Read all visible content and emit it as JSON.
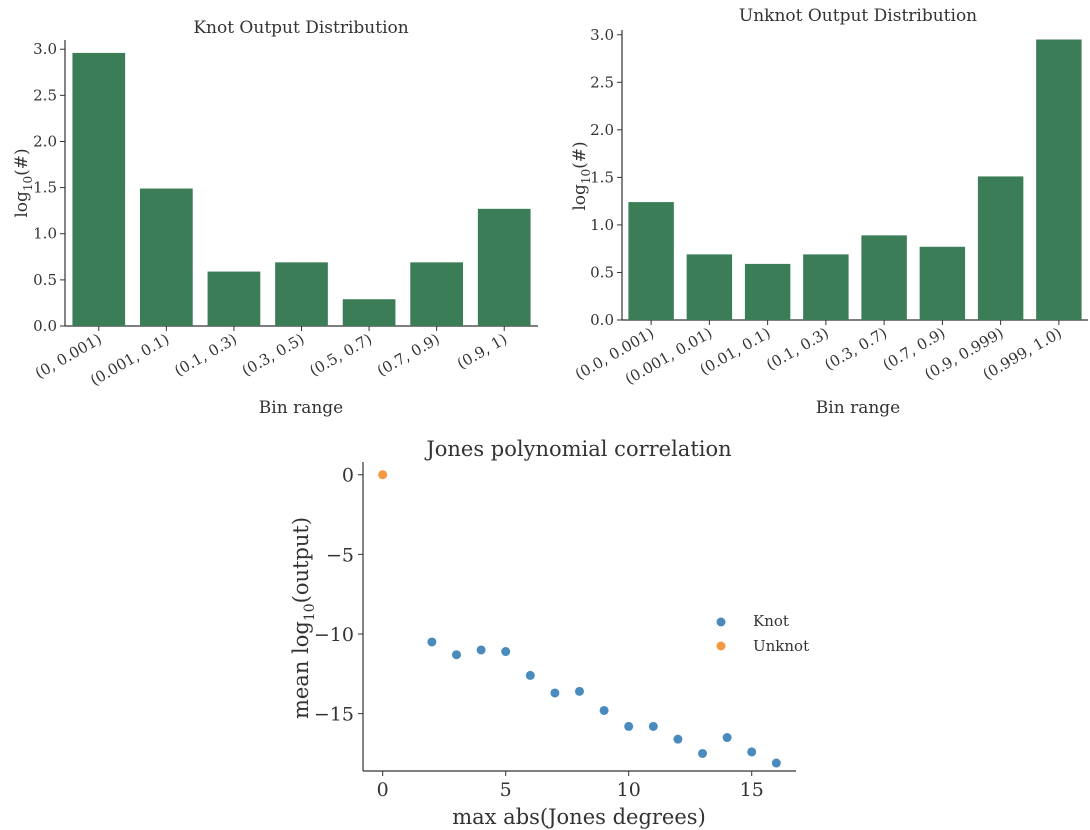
{
  "chart_data": [
    {
      "type": "bar",
      "title": "Knot Output Distribution",
      "xlabel": "Bin range",
      "ylabel_base": "log",
      "ylabel_sub": "10",
      "ylabel_rest": "(#)",
      "categories": [
        "(0, 0.001)",
        "(0.001, 0.1)",
        "(0.1, 0.3)",
        "(0.3, 0.5)",
        "(0.5, 0.7)",
        "(0.7, 0.9)",
        "(0.9, 1)"
      ],
      "values": [
        2.96,
        1.49,
        0.59,
        0.69,
        0.29,
        0.69,
        1.27
      ],
      "ylim": [
        0,
        3.1
      ],
      "yticks": [
        "0.0",
        "0.5",
        "1.0",
        "1.5",
        "2.0",
        "2.5",
        "3.0"
      ],
      "bar_color": "#3a7d56"
    },
    {
      "type": "bar",
      "title": "Unknot Output Distribution",
      "xlabel": "Bin range",
      "ylabel_base": "log",
      "ylabel_sub": "10",
      "ylabel_rest": "(#)",
      "categories": [
        "(0.0, 0.001)",
        "(0.001, 0.01)",
        "(0.01, 0.1)",
        "(0.1, 0.3)",
        "(0.3, 0.7)",
        "(0.7, 0.9)",
        "(0.9, 0.999)",
        "(0.999, 1.0)"
      ],
      "values": [
        1.24,
        0.69,
        0.59,
        0.69,
        0.89,
        0.77,
        1.51,
        2.95
      ],
      "ylim": [
        0,
        3.05
      ],
      "yticks": [
        "0.0",
        "0.5",
        "1.0",
        "1.5",
        "2.0",
        "2.5",
        "3.0"
      ],
      "bar_color": "#3a7d56"
    },
    {
      "type": "scatter",
      "title": "Jones polynomial correlation",
      "xlabel": "max  abs(Jones degrees)",
      "ylabel_base": "mean log",
      "ylabel_sub": "10",
      "ylabel_rest": "(output)",
      "xlim": [
        -0.8,
        16.8
      ],
      "ylim": [
        -18.6,
        0.8
      ],
      "xticks": [
        0,
        5,
        10,
        15
      ],
      "yticks": [
        0,
        -5,
        -10,
        -15
      ],
      "ytick_labels": [
        "0",
        "−5",
        "−10",
        "−15"
      ],
      "legend_position": "center-right",
      "series": [
        {
          "name": "Knot",
          "color": "#4a8bbd",
          "x": [
            2,
            3,
            4,
            5,
            6,
            7,
            8,
            9,
            10,
            11,
            12,
            13,
            14,
            15,
            16
          ],
          "y": [
            -10.5,
            -11.3,
            -11.0,
            -11.1,
            -12.6,
            -13.7,
            -13.6,
            -14.8,
            -15.8,
            -15.8,
            -16.6,
            -17.5,
            -16.5,
            -17.4,
            -18.1
          ]
        },
        {
          "name": "Unknot",
          "color": "#f59a42",
          "x": [
            0
          ],
          "y": [
            0
          ]
        }
      ]
    }
  ]
}
